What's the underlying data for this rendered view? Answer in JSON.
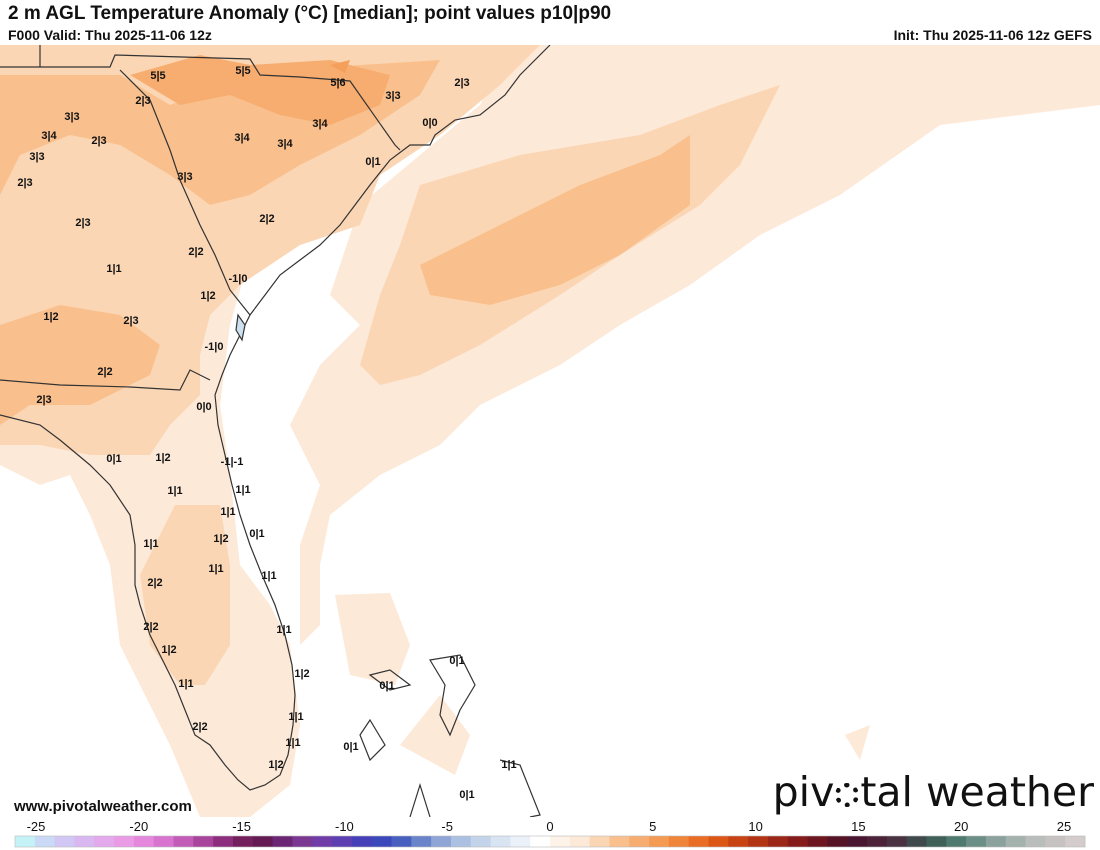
{
  "header": {
    "title": "2 m AGL Temperature Anomaly (°C) [median]; point values p10|p90",
    "valid": "F000 Valid: Thu 2025-11-06 12z",
    "init": "Init: Thu 2025-11-06 12z GEFS"
  },
  "footer": {
    "site": "www.pivotalweather.com",
    "logo_left": "piv",
    "logo_right": "tal weather"
  },
  "colors": {
    "land_line": "#333333",
    "level_1": "#fde9d8",
    "level_2": "#fbd6b4",
    "level_3": "#f9c08d",
    "level_4": "#f7ad6f",
    "level_5": "#f49f5c"
  },
  "point_values": [
    "5|5",
    "5|5",
    "5|6",
    "2|3",
    "3|3",
    "0|0",
    "2|3",
    "3|3",
    "3|4",
    "2|3",
    "3|4",
    "3|4",
    "3|4",
    "3|3",
    "0|1",
    "3|3",
    "2|3",
    "2|2",
    "2|3",
    "2|2",
    "1|1",
    "-1|0",
    "1|2",
    "1|2",
    "2|3",
    "-1|0",
    "2|2",
    "2|3",
    "0|0",
    "0|1",
    "1|2",
    "-1|-1",
    "1|1",
    "1|1",
    "1|1",
    "1|2",
    "0|1",
    "1|1",
    "1|1",
    "1|1",
    "2|2",
    "2|2",
    "1|1",
    "1|2",
    "0|1",
    "1|2",
    "1|1",
    "0|1",
    "1|1",
    "2|2",
    "1|1",
    "0|1",
    "1|2",
    "1|1",
    "0|1"
  ],
  "colorbar": {
    "ticks": [
      "-25",
      "-20",
      "-15",
      "-10",
      "-5",
      "0",
      "5",
      "10",
      "15",
      "20",
      "25"
    ],
    "colors": [
      "#c5f2f7",
      "#c9d9f6",
      "#d2c7f4",
      "#d9b7f0",
      "#e4a8ec",
      "#e99be6",
      "#e588dd",
      "#d873cf",
      "#c25cb6",
      "#a8449b",
      "#8c2e7d",
      "#74205f",
      "#651a54",
      "#6b2674",
      "#7a3893",
      "#6f3ca8",
      "#5d3fb1",
      "#4640b8",
      "#3b48bb",
      "#4760c0",
      "#6a84ca",
      "#8ea5d6",
      "#acc0e1",
      "#c3d3ea",
      "#d8e4f2",
      "#ebf1f8",
      "#ffffff",
      "#fef3e8",
      "#fde9d8",
      "#fbd6b4",
      "#f9c08d",
      "#f7ad6f",
      "#f49a52",
      "#f0843a",
      "#e96d25",
      "#dc5616",
      "#c84313",
      "#b23414",
      "#9c2618",
      "#861b1c",
      "#6d1620",
      "#561325",
      "#4a1530",
      "#4b2238",
      "#4a3242",
      "#3f4a4d",
      "#3f6158",
      "#4f7a6f",
      "#6b8f86",
      "#8aa19c",
      "#a4b2ae",
      "#b9bebc",
      "#c7c2c2",
      "#d4cccc"
    ]
  }
}
